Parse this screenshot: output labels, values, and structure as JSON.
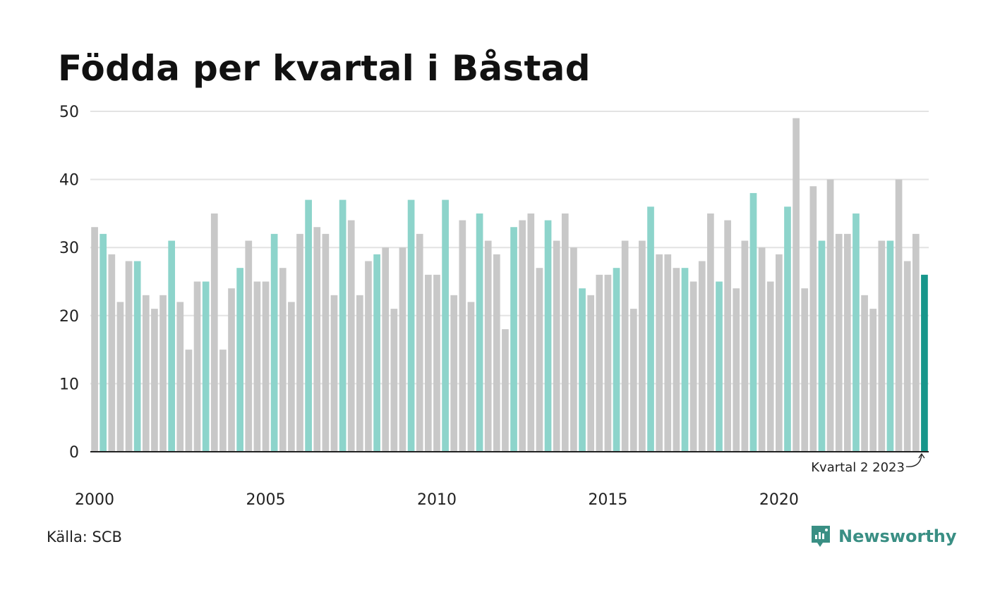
{
  "title": "Födda per kvartal i Båstad",
  "source": "Källa: SCB",
  "brand": {
    "name": "Newsworthy"
  },
  "colors": {
    "grey": "#c8c8c8",
    "q2": "#8dd4cb",
    "latest": "#17968b",
    "axis": "#222222",
    "grid": "#e3e3e3",
    "brand": "#3a8f84"
  },
  "chart_data": {
    "type": "bar",
    "title": "Födda per kvartal i Båstad",
    "xlabel": "",
    "ylabel": "",
    "ylim": [
      0,
      50
    ],
    "yticks": [
      0,
      10,
      20,
      30,
      40,
      50
    ],
    "grid": true,
    "xtick_labels": [
      {
        "label": "2000",
        "index": 0
      },
      {
        "label": "2005",
        "index": 20
      },
      {
        "label": "2010",
        "index": 40
      },
      {
        "label": "2015",
        "index": 60
      },
      {
        "label": "2020",
        "index": 80
      }
    ],
    "highlight": "Quarter 2 of each year highlighted; latest quarter in dark teal",
    "annotation": {
      "text": "Kvartal 2 2023",
      "index": 97
    },
    "values": [
      33,
      32,
      29,
      22,
      28,
      28,
      23,
      21,
      23,
      31,
      22,
      15,
      25,
      25,
      35,
      15,
      24,
      27,
      31,
      25,
      25,
      32,
      27,
      22,
      32,
      37,
      33,
      32,
      23,
      37,
      34,
      23,
      28,
      29,
      30,
      21,
      30,
      37,
      32,
      26,
      26,
      37,
      23,
      34,
      22,
      35,
      31,
      29,
      18,
      33,
      34,
      35,
      27,
      34,
      31,
      35,
      30,
      24,
      23,
      26,
      26,
      27,
      31,
      21,
      31,
      36,
      29,
      29,
      27,
      27,
      25,
      28,
      35,
      25,
      34,
      24,
      31,
      38,
      30,
      25,
      29,
      36,
      49,
      24,
      39,
      31,
      40,
      32,
      32,
      35,
      23,
      21,
      31,
      31,
      40,
      28,
      32,
      26
    ]
  }
}
